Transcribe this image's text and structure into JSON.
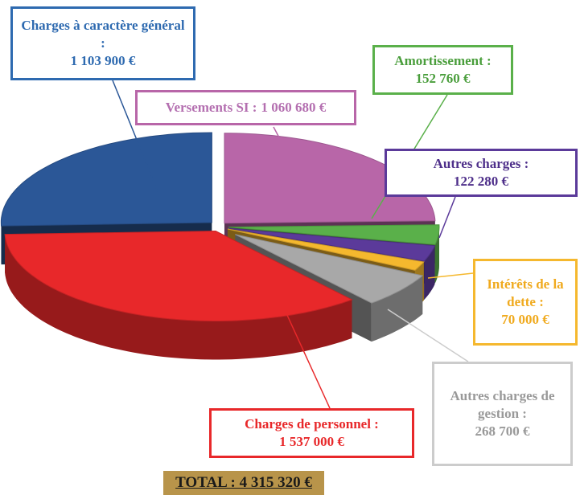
{
  "chart_data": {
    "type": "pie",
    "style": "3d-exploded",
    "categories": [
      "Versements SI :",
      "Amortissement :",
      "Autres charges :",
      "Intérêts de la dette :",
      "Autres charges de gestion :",
      "Charges de personnel :",
      "Charges à caractère général :"
    ],
    "values": [
      1060680,
      152760,
      122280,
      70000,
      268700,
      1537000,
      1103900
    ],
    "value_labels": [
      "1 060 680 €",
      "152 760 €",
      "122 280 €",
      "70 000 €",
      "268 700 €",
      "1 537 000 €",
      "1 103 900 €"
    ],
    "colors": [
      "#b866a8",
      "#5ab04a",
      "#5b3a9a",
      "#f5b82e",
      "#a8a8a8",
      "#e8282a",
      "#2b5797"
    ],
    "total_label": "TOTAL : 4 315 320 €"
  }
}
